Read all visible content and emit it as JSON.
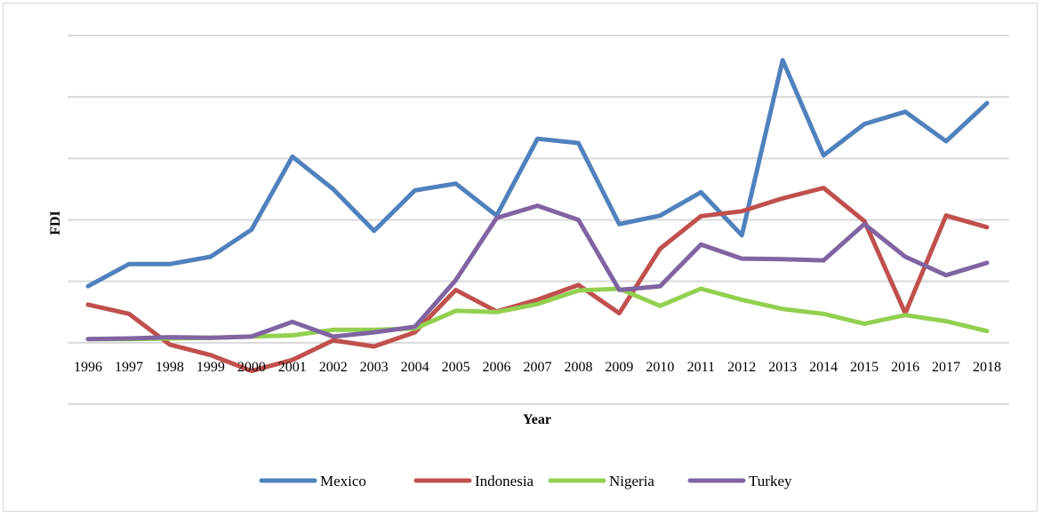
{
  "chart_data": {
    "type": "line",
    "title": "",
    "xlabel": "Year",
    "ylabel": "FDI",
    "ylim": [
      -1,
      5
    ],
    "grid": true,
    "legend": "bottom",
    "categories": [
      "1996",
      "1997",
      "1998",
      "1999",
      "2000",
      "2001",
      "2002",
      "2003",
      "2004",
      "2005",
      "2006",
      "2007",
      "2008",
      "2009",
      "2010",
      "2011",
      "2012",
      "2013",
      "2014",
      "2015",
      "2016",
      "2017",
      "2018"
    ],
    "series": [
      {
        "name": "Mexico",
        "color": "#4f81bd",
        "values": [
          0.92,
          1.28,
          1.28,
          1.4,
          1.84,
          3.03,
          2.5,
          1.82,
          2.48,
          2.59,
          2.07,
          3.32,
          3.25,
          1.93,
          2.07,
          2.45,
          1.75,
          4.6,
          3.05,
          3.56,
          3.76,
          3.28,
          3.9
        ]
      },
      {
        "name": "Indonesia",
        "color": "#c0504d",
        "values": [
          0.62,
          0.47,
          -0.03,
          -0.2,
          -0.46,
          -0.28,
          0.04,
          -0.06,
          0.17,
          0.86,
          0.51,
          0.7,
          0.94,
          0.48,
          1.53,
          2.06,
          2.14,
          2.35,
          2.52,
          1.98,
          0.48,
          2.07,
          1.88
        ]
      },
      {
        "name": "Nigeria",
        "color": "#92d050",
        "values": [
          0.06,
          0.06,
          0.07,
          0.08,
          0.1,
          0.12,
          0.21,
          0.21,
          0.23,
          0.52,
          0.5,
          0.63,
          0.85,
          0.88,
          0.6,
          0.88,
          0.7,
          0.55,
          0.47,
          0.31,
          0.45,
          0.35,
          0.19
        ]
      },
      {
        "name": "Turkey",
        "color": "#8064a2",
        "values": [
          0.06,
          0.07,
          0.09,
          0.08,
          0.1,
          0.34,
          0.1,
          0.17,
          0.26,
          1.02,
          2.03,
          2.23,
          2.0,
          0.86,
          0.92,
          1.6,
          1.37,
          1.36,
          1.34,
          1.93,
          1.4,
          1.1,
          1.3
        ]
      }
    ]
  }
}
